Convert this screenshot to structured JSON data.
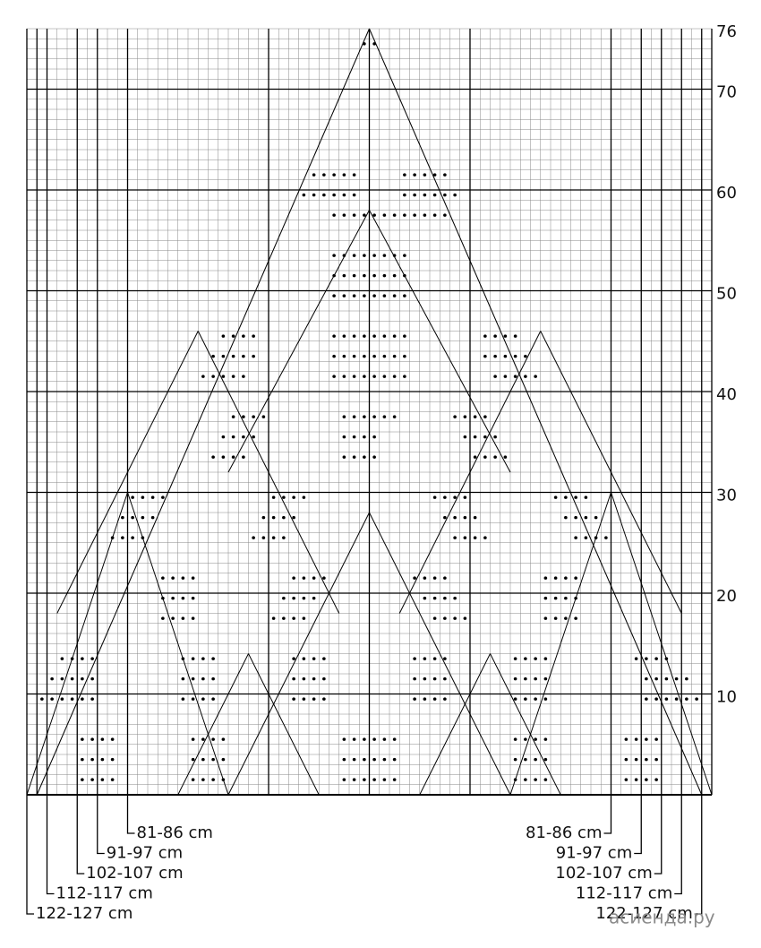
{
  "row_labels": [
    76,
    70,
    60,
    50,
    40,
    30,
    20,
    10
  ],
  "sizes_left": [
    "81-86 cm",
    "91-97 cm",
    "102-107 cm",
    "112-117 cm",
    "122-127 cm"
  ],
  "sizes_right": [
    "81-86 cm",
    "91-97 cm",
    "102-107 cm",
    "112-117 cm",
    "122-127 cm"
  ],
  "watermark": "асиенда.ру"
}
